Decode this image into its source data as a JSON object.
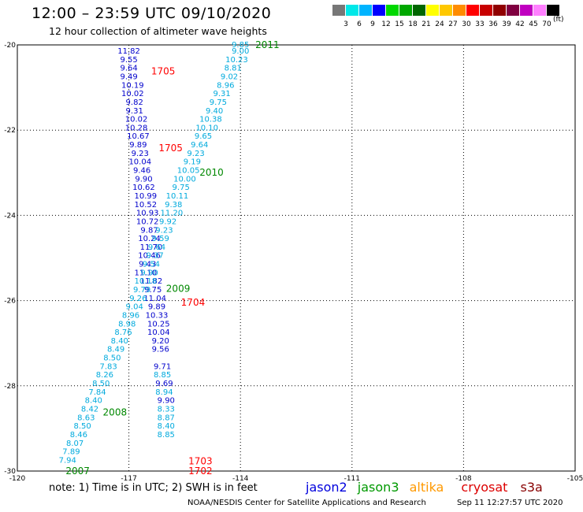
{
  "header": {
    "title": "12:00 – 23:59 UTC 09/10/2020",
    "subtitle": "12 hour collection of altimeter wave heights"
  },
  "colorbar": {
    "unit": "(ft)",
    "colors": [
      "#777777",
      "#00e8e8",
      "#00b4ff",
      "#0000ff",
      "#00d800",
      "#00a800",
      "#006600",
      "#ffff00",
      "#ffc800",
      "#ff8c00",
      "#ff0000",
      "#c80000",
      "#900000",
      "#800040",
      "#c000c0",
      "#ff80ff",
      "#000000"
    ],
    "labels": [
      "3",
      "6",
      "9",
      "12",
      "15",
      "18",
      "21",
      "24",
      "27",
      "30",
      "33",
      "36",
      "39",
      "42",
      "45",
      "70"
    ]
  },
  "chart_data": {
    "type": "scatter",
    "title": "12:00 – 23:59 UTC 09/10/2020",
    "xlabel": "",
    "ylabel": "",
    "xlim": [
      -120,
      -105
    ],
    "ylim": [
      -30,
      -20
    ],
    "xticks": [
      "-120",
      "-117",
      "-114",
      "-111",
      "-108",
      "-105"
    ],
    "yticks": [
      "-20",
      "-22",
      "-24",
      "-26",
      "-28",
      "-30"
    ],
    "grid": true,
    "track_labels": [
      {
        "text": "2011",
        "x": -113.6,
        "y": -19.98,
        "color": "#008800"
      },
      {
        "text": "1705",
        "x": -116.4,
        "y": -20.6,
        "color": "#ff0000"
      },
      {
        "text": "1705",
        "x": -116.2,
        "y": -22.4,
        "color": "#ff0000"
      },
      {
        "text": "2010",
        "x": -115.1,
        "y": -22.98,
        "color": "#008800"
      },
      {
        "text": "2009",
        "x": -116.0,
        "y": -25.7,
        "color": "#008800"
      },
      {
        "text": "1704",
        "x": -115.6,
        "y": -26.03,
        "color": "#ff0000"
      },
      {
        "text": "2008",
        "x": -117.7,
        "y": -28.6,
        "color": "#008800"
      },
      {
        "text": "1703",
        "x": -115.4,
        "y": -29.75,
        "color": "#ff0000"
      },
      {
        "text": "2007",
        "x": -118.7,
        "y": -29.98,
        "color": "#008800"
      },
      {
        "text": "1702",
        "x": -115.4,
        "y": -29.98,
        "color": "#ff0000"
      }
    ],
    "series": [
      {
        "name": "jason2",
        "color": "#0000cc",
        "points": [
          [
            -117.0,
            -20.13,
            "11.82"
          ],
          [
            -117.0,
            -20.33,
            "9.55"
          ],
          [
            -117.0,
            -20.53,
            "9.64"
          ],
          [
            -117.0,
            -20.73,
            "9.49"
          ],
          [
            -116.9,
            -20.93,
            "10.19"
          ],
          [
            -116.9,
            -21.13,
            "10.02"
          ],
          [
            -116.85,
            -21.33,
            "9.82"
          ],
          [
            -116.85,
            -21.53,
            "9.31"
          ],
          [
            -116.8,
            -21.73,
            "10.02"
          ],
          [
            -116.8,
            -21.93,
            "10.28"
          ],
          [
            -116.75,
            -22.13,
            "10.67"
          ],
          [
            -116.75,
            -22.33,
            "9.89"
          ],
          [
            -116.7,
            -22.53,
            "9.23"
          ],
          [
            -116.7,
            -22.73,
            "10.04"
          ],
          [
            -116.65,
            -22.93,
            "9.46"
          ],
          [
            -116.6,
            -23.13,
            "9.90"
          ],
          [
            -116.6,
            -23.33,
            "10.62"
          ],
          [
            -116.55,
            -23.53,
            "10.99"
          ],
          [
            -116.55,
            -23.73,
            "10.52"
          ],
          [
            -116.5,
            -23.93,
            "10.93"
          ],
          [
            -116.5,
            -24.13,
            "10.72"
          ],
          [
            -116.45,
            -24.33,
            "9.87"
          ],
          [
            -116.45,
            -24.53,
            "10.24"
          ],
          [
            -116.4,
            -24.73,
            "11.70"
          ],
          [
            -116.45,
            -24.93,
            "10.46"
          ],
          [
            -116.5,
            -25.13,
            "9.43"
          ],
          [
            -116.55,
            -25.33,
            "11.10"
          ],
          [
            -116.4,
            -25.53,
            "11.82"
          ],
          [
            -116.35,
            -25.73,
            "9.75"
          ],
          [
            -116.3,
            -25.93,
            "11.04"
          ],
          [
            -116.25,
            -26.13,
            "9.89"
          ],
          [
            -116.25,
            -26.33,
            "10.33"
          ],
          [
            -116.2,
            -26.53,
            "10.25"
          ],
          [
            -116.2,
            -26.73,
            "10.04"
          ],
          [
            -116.15,
            -26.93,
            "9.20"
          ],
          [
            -116.15,
            -27.13,
            "9.56"
          ],
          [
            -116.1,
            -27.53,
            "9.71"
          ],
          [
            -116.05,
            -27.93,
            "9.69"
          ],
          [
            -116.0,
            -28.33,
            "9.90"
          ]
        ]
      },
      {
        "name": "jason3",
        "color": "#009900",
        "points": []
      },
      {
        "name": "altika",
        "color": "#ff8800",
        "points": []
      },
      {
        "name": "cryosat",
        "color": "#cc0000",
        "points": []
      },
      {
        "name": "s3a",
        "color": "#880000",
        "points": []
      },
      {
        "name": "jason2 (cyan)",
        "color": "#00aadd",
        "points": [
          [
            -114.0,
            -20.13,
            "9.00"
          ],
          [
            -114.1,
            -20.33,
            "10.23"
          ],
          [
            -114.2,
            -20.53,
            "8.81"
          ],
          [
            -114.3,
            -20.73,
            "9.02"
          ],
          [
            -114.4,
            -20.93,
            "8.96"
          ],
          [
            -114.5,
            -21.13,
            "9.31"
          ],
          [
            -114.6,
            -21.33,
            "9.75"
          ],
          [
            -114.7,
            -21.53,
            "9.40"
          ],
          [
            -114.8,
            -21.73,
            "10.38"
          ],
          [
            -114.9,
            -21.93,
            "10.10"
          ],
          [
            -115.0,
            -22.13,
            "9.65"
          ],
          [
            -115.1,
            -22.33,
            "9.64"
          ],
          [
            -115.2,
            -22.53,
            "9.23"
          ],
          [
            -115.3,
            -22.73,
            "9.19"
          ],
          [
            -115.4,
            -22.93,
            "10.05"
          ],
          [
            -115.5,
            -23.13,
            "10.00"
          ],
          [
            -115.6,
            -23.33,
            "9.75"
          ],
          [
            -115.7,
            -23.53,
            "10.11"
          ],
          [
            -115.8,
            -23.73,
            "9.38"
          ],
          [
            -115.85,
            -23.93,
            "11.20"
          ],
          [
            -115.95,
            -24.13,
            "9.92"
          ],
          [
            -116.05,
            -24.33,
            "9.23"
          ],
          [
            -116.15,
            -24.53,
            "9.59"
          ],
          [
            -116.25,
            -24.73,
            "9.64"
          ],
          [
            -116.3,
            -24.93,
            "9.37"
          ],
          [
            -116.4,
            -25.13,
            "9.54"
          ],
          [
            -116.45,
            -25.33,
            "9.90"
          ],
          [
            -116.55,
            -25.53,
            "10.18"
          ],
          [
            -116.65,
            -25.73,
            "9.79"
          ],
          [
            -116.75,
            -25.93,
            "9.26"
          ],
          [
            -116.85,
            -26.13,
            "9.04"
          ],
          [
            -116.95,
            -26.33,
            "8.96"
          ],
          [
            -117.05,
            -26.53,
            "8.98"
          ],
          [
            -117.15,
            -26.73,
            "8.76"
          ],
          [
            -117.25,
            -26.93,
            "8.40"
          ],
          [
            -117.35,
            -27.13,
            "8.49"
          ],
          [
            -117.45,
            -27.33,
            "8.50"
          ],
          [
            -117.55,
            -27.53,
            "7.83"
          ],
          [
            -117.65,
            -27.73,
            "8.26"
          ],
          [
            -117.75,
            -27.93,
            "8.50"
          ],
          [
            -117.85,
            -28.13,
            "7.84"
          ],
          [
            -117.95,
            -28.33,
            "8.40"
          ],
          [
            -118.05,
            -28.53,
            "8.42"
          ],
          [
            -118.15,
            -28.73,
            "8.63"
          ],
          [
            -118.25,
            -28.93,
            "8.50"
          ],
          [
            -118.35,
            -29.13,
            "8.46"
          ],
          [
            -118.45,
            -29.33,
            "8.07"
          ],
          [
            -118.55,
            -29.53,
            "7.89"
          ],
          [
            -118.65,
            -29.73,
            "7.94"
          ],
          [
            -116.1,
            -27.73,
            "8.85"
          ],
          [
            -116.05,
            -28.13,
            "8.94"
          ],
          [
            -116.0,
            -28.53,
            "8.33"
          ],
          [
            -116.0,
            -28.73,
            "8.87"
          ],
          [
            -116.0,
            -28.93,
            "8.40"
          ],
          [
            -116.0,
            -29.13,
            "8.85"
          ],
          [
            -114.0,
            -19.98,
            "9.85"
          ]
        ]
      }
    ]
  },
  "legend": [
    {
      "label": "jason2",
      "color": "#0000dd"
    },
    {
      "label": "jason3",
      "color": "#009900"
    },
    {
      "label": "altika",
      "color": "#ff9900"
    },
    {
      "label": "cryosat",
      "color": "#dd0000"
    },
    {
      "label": "s3a",
      "color": "#880000"
    }
  ],
  "note": "note: 1) Time is in UTC; 2) SWH is in feet",
  "footer": {
    "org": "NOAA/NESDIS Center for Satellite Applications and Research",
    "timestamp": "Sep 11 12:27:57 UTC 2020"
  }
}
